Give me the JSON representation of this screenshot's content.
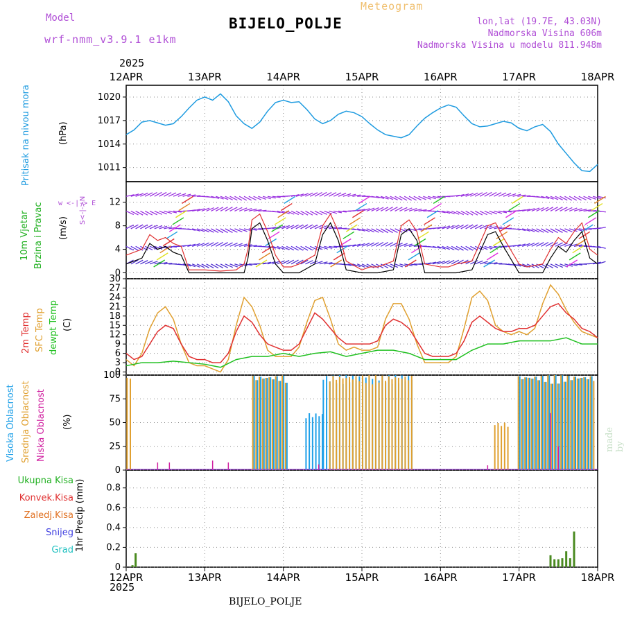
{
  "header": {
    "model_label": "Model",
    "model_version": "wrf-nmm_v3.9.1 e1km",
    "chart_title": "Meteogram",
    "station": "BIJELO_POLJE",
    "lonlat": "lon,lat (19.7E, 43.03N)",
    "elevation": "Nadmorska Visina 606m",
    "model_elevation": "Nadmorska Visina u modelu 811.948m",
    "year_top": "2025",
    "year_bottom": "2025",
    "station_bottom": "BIJELO_POLJE",
    "made_by": "made by Angel"
  },
  "colors": {
    "pressure": "#1e9be0",
    "temp2m": "#e03030",
    "sfc": "#e0a030",
    "dewpt": "#20c020",
    "high_cloud": "#1ea0e8",
    "mid_cloud": "#e0a030",
    "low_cloud": "#d020a0",
    "total_precip": "#4a8a20"
  },
  "panels": {
    "pressure": {
      "label": "Pritisak na nivou mora",
      "unit": "(hPa)"
    },
    "wind": {
      "label1": "10m Vjetar",
      "label2": "Brzina i Pravac",
      "unit": "(m/s)",
      "compass": "w <-|-> E",
      "compass2": "S<-|->N"
    },
    "temp": {
      "label1": "2m Temp",
      "label2": "SFC Temp",
      "label3": "dewpt Temp",
      "unit": "(C)"
    },
    "cloud": {
      "label1": "Visoka Oblacnost",
      "label2": "Srednja Oblacnost",
      "label3": "Niska Oblacnost",
      "unit": "(%)"
    },
    "precip": {
      "unit": "1hr Precip (mm)",
      "legend": [
        "Ukupna Kisa",
        "Konvek.Kisa",
        "Zaledj.Kisa",
        "Snijeg",
        "Grad"
      ]
    }
  },
  "chart_data": [
    {
      "type": "line",
      "title": "",
      "ylabel": "(hPa)",
      "x_ticks": [
        "12APR",
        "13APR",
        "14APR",
        "15APR",
        "16APR",
        "17APR",
        "18APR"
      ],
      "yticks": [
        1011,
        1014,
        1017,
        1020
      ],
      "ylim": [
        1009.2,
        1021.5
      ],
      "series": [
        {
          "name": "Pritisak na nivou mora",
          "x_days": [
            0,
            0.1,
            0.2,
            0.3,
            0.4,
            0.5,
            0.6,
            0.7,
            0.8,
            0.9,
            1.0,
            1.1,
            1.2,
            1.3,
            1.4,
            1.5,
            1.6,
            1.7,
            1.8,
            1.9,
            2.0,
            2.1,
            2.2,
            2.3,
            2.4,
            2.5,
            2.6,
            2.7,
            2.8,
            2.9,
            3.0,
            3.1,
            3.2,
            3.3,
            3.4,
            3.5,
            3.6,
            3.7,
            3.8,
            3.9,
            4.0,
            4.1,
            4.2,
            4.3,
            4.4,
            4.5,
            4.6,
            4.7,
            4.8,
            4.9,
            5.0,
            5.1,
            5.2,
            5.3,
            5.4,
            5.5,
            5.6,
            5.7,
            5.8,
            5.9,
            6.0
          ],
          "values": [
            1015.2,
            1015.8,
            1016.8,
            1017.0,
            1016.7,
            1016.4,
            1016.6,
            1017.5,
            1018.6,
            1019.6,
            1020.0,
            1019.6,
            1020.4,
            1019.4,
            1017.6,
            1016.6,
            1016.0,
            1016.8,
            1018.2,
            1019.3,
            1019.6,
            1019.3,
            1019.4,
            1018.4,
            1017.2,
            1016.6,
            1017.0,
            1017.8,
            1018.2,
            1018.0,
            1017.5,
            1016.6,
            1015.8,
            1015.2,
            1015.0,
            1014.8,
            1015.2,
            1016.3,
            1017.3,
            1018.0,
            1018.6,
            1019.0,
            1018.7,
            1017.6,
            1016.6,
            1016.2,
            1016.3,
            1016.6,
            1016.9,
            1016.7,
            1016.0,
            1015.7,
            1016.2,
            1016.5,
            1015.6,
            1014.0,
            1012.8,
            1011.6,
            1010.6,
            1010.5,
            1011.4
          ]
        }
      ]
    },
    {
      "type": "line",
      "title": "",
      "ylabel": "(m/s)",
      "yticks": [
        0,
        4,
        8,
        12
      ],
      "ylim": [
        -1,
        15.5
      ],
      "series": [
        {
          "name": "10m Vjetar",
          "x_days": [
            0,
            0.2,
            0.3,
            0.4,
            0.5,
            0.6,
            0.7,
            0.8,
            1.0,
            1.2,
            1.4,
            1.5,
            1.55,
            1.6,
            1.7,
            1.8,
            1.9,
            2.0,
            2.1,
            2.2,
            2.4,
            2.5,
            2.6,
            2.7,
            2.8,
            3.0,
            3.1,
            3.2,
            3.4,
            3.5,
            3.6,
            3.7,
            3.8,
            4.0,
            4.1,
            4.2,
            4.4,
            4.5,
            4.6,
            4.7,
            4.8,
            5.0,
            5.1,
            5.3,
            5.4,
            5.5,
            5.6,
            5.7,
            5.8,
            5.9,
            6.0
          ],
          "values": [
            3,
            4,
            6.5,
            5.5,
            6,
            5,
            4.5,
            0.5,
            0.5,
            0.3,
            0.5,
            1.5,
            4,
            9,
            10,
            7,
            3,
            1,
            1,
            1.5,
            3,
            8,
            10,
            7,
            2,
            0.5,
            1,
            1,
            2,
            8,
            9,
            7,
            1.5,
            1,
            1,
            1.5,
            2,
            5,
            8,
            8.5,
            6,
            1.5,
            1,
            1.5,
            4,
            6,
            5,
            7,
            8.5,
            4,
            3
          ]
        }
      ]
    },
    {
      "type": "line",
      "title": "",
      "ylabel": "(C)",
      "yticks": [
        0,
        3,
        6,
        9,
        12,
        15,
        18,
        21,
        24,
        27,
        30
      ],
      "ylim": [
        -1,
        30
      ],
      "series": [
        {
          "name": "2m Temp",
          "x_days": [
            0,
            0.1,
            0.2,
            0.3,
            0.4,
            0.5,
            0.6,
            0.7,
            0.8,
            0.9,
            1.0,
            1.1,
            1.2,
            1.3,
            1.4,
            1.5,
            1.6,
            1.7,
            1.8,
            1.9,
            2.0,
            2.1,
            2.2,
            2.3,
            2.4,
            2.5,
            2.6,
            2.7,
            2.8,
            2.9,
            3.0,
            3.1,
            3.2,
            3.3,
            3.4,
            3.5,
            3.6,
            3.7,
            3.8,
            3.9,
            4.0,
            4.1,
            4.2,
            4.3,
            4.4,
            4.5,
            4.6,
            4.7,
            4.8,
            4.9,
            5.0,
            5.1,
            5.2,
            5.3,
            5.4,
            5.5,
            5.6,
            5.7,
            5.8,
            5.9,
            6.0
          ],
          "values": [
            6,
            4,
            5,
            9,
            13,
            15,
            14,
            9,
            5,
            4,
            4,
            3,
            3,
            6,
            13,
            18,
            16,
            12,
            9,
            8,
            7,
            7,
            9,
            14,
            19,
            17,
            14,
            11,
            9,
            9,
            9,
            9,
            10,
            15,
            17,
            16,
            14,
            10,
            6,
            5,
            5,
            5,
            6,
            10,
            16,
            18,
            16,
            14,
            13,
            13,
            14,
            14,
            15,
            18,
            21,
            22,
            19,
            17,
            14,
            13,
            11
          ]
        },
        {
          "name": "SFC Temp",
          "x_days": [
            0,
            0.1,
            0.2,
            0.3,
            0.4,
            0.5,
            0.6,
            0.7,
            0.8,
            0.9,
            1.0,
            1.1,
            1.2,
            1.3,
            1.4,
            1.5,
            1.6,
            1.7,
            1.8,
            1.9,
            2.0,
            2.1,
            2.2,
            2.3,
            2.4,
            2.5,
            2.6,
            2.7,
            2.8,
            2.9,
            3.0,
            3.1,
            3.2,
            3.3,
            3.4,
            3.5,
            3.6,
            3.7,
            3.8,
            3.9,
            4.0,
            4.1,
            4.2,
            4.3,
            4.4,
            4.5,
            4.6,
            4.7,
            4.8,
            4.9,
            5.0,
            5.1,
            5.2,
            5.3,
            5.4,
            5.5,
            5.6,
            5.7,
            5.8,
            5.9,
            6.0
          ],
          "values": [
            4,
            2,
            6,
            14,
            19,
            21,
            17,
            9,
            3,
            2,
            2,
            1,
            0,
            4,
            15,
            24,
            21,
            15,
            7,
            5,
            5,
            5,
            8,
            16,
            23,
            24,
            17,
            9,
            7,
            8,
            7,
            7,
            8,
            17,
            22,
            22,
            17,
            9,
            3,
            3,
            3,
            3,
            5,
            14,
            24,
            26,
            23,
            15,
            13,
            12,
            13,
            12,
            14,
            22,
            28,
            25,
            20,
            16,
            13,
            12,
            11
          ]
        },
        {
          "name": "dewpt Temp",
          "x_days": [
            0,
            0.2,
            0.4,
            0.6,
            0.8,
            1.0,
            1.2,
            1.4,
            1.6,
            1.8,
            2.0,
            2.2,
            2.4,
            2.6,
            2.8,
            3.0,
            3.2,
            3.4,
            3.6,
            3.8,
            4.0,
            4.2,
            4.4,
            4.6,
            4.8,
            5.0,
            5.2,
            5.4,
            5.6,
            5.8,
            6.0
          ],
          "values": [
            2,
            3,
            3,
            3.5,
            3,
            2.5,
            1.5,
            4,
            5,
            5,
            6,
            5,
            6,
            6.5,
            5,
            6,
            7,
            7,
            6,
            4,
            4,
            4,
            7,
            9,
            9,
            10,
            10,
            10,
            11,
            9,
            9
          ]
        }
      ]
    },
    {
      "type": "bar",
      "title": "",
      "ylabel": "(%)",
      "yticks": [
        0,
        25,
        50,
        75,
        100
      ],
      "ylim": [
        0,
        100
      ],
      "series": [
        {
          "name": "Visoka Oblacnost",
          "segments_days": [
            [
              1.62,
              2.07,
              100
            ],
            [
              2.28,
              2.5,
              60
            ],
            [
              2.5,
              3.65,
              100
            ],
            [
              5.0,
              5.95,
              100
            ]
          ]
        },
        {
          "name": "Srednja Oblacnost",
          "segments_days": [
            [
              0.02,
              0.1,
              100
            ],
            [
              1.62,
              2.07,
              100
            ],
            [
              2.6,
              3.65,
              100
            ],
            [
              4.7,
              4.9,
              50
            ],
            [
              5.0,
              6.0,
              100
            ]
          ]
        },
        {
          "name": "Niska Oblacnost",
          "spikes": [
            [
              0.4,
              8
            ],
            [
              0.55,
              8
            ],
            [
              1.1,
              10
            ],
            [
              1.3,
              8
            ],
            [
              2.45,
              6
            ],
            [
              4.6,
              5
            ],
            [
              5.4,
              60
            ],
            [
              5.5,
              25
            ]
          ]
        }
      ]
    },
    {
      "type": "bar",
      "title": "",
      "ylabel": "1hr Precip (mm)",
      "yticks": [
        0,
        0.2,
        0.4,
        0.6,
        0.8
      ],
      "ylim": [
        0,
        0.98
      ],
      "series": [
        {
          "name": "Ukupna Kisa",
          "x_days": [
            0.08,
            0.12,
            5.4,
            5.45,
            5.5,
            5.55,
            5.6,
            5.65,
            5.7
          ],
          "values": [
            0.02,
            0.14,
            0.12,
            0.08,
            0.08,
            0.09,
            0.16,
            0.09,
            0.36
          ]
        }
      ]
    }
  ]
}
